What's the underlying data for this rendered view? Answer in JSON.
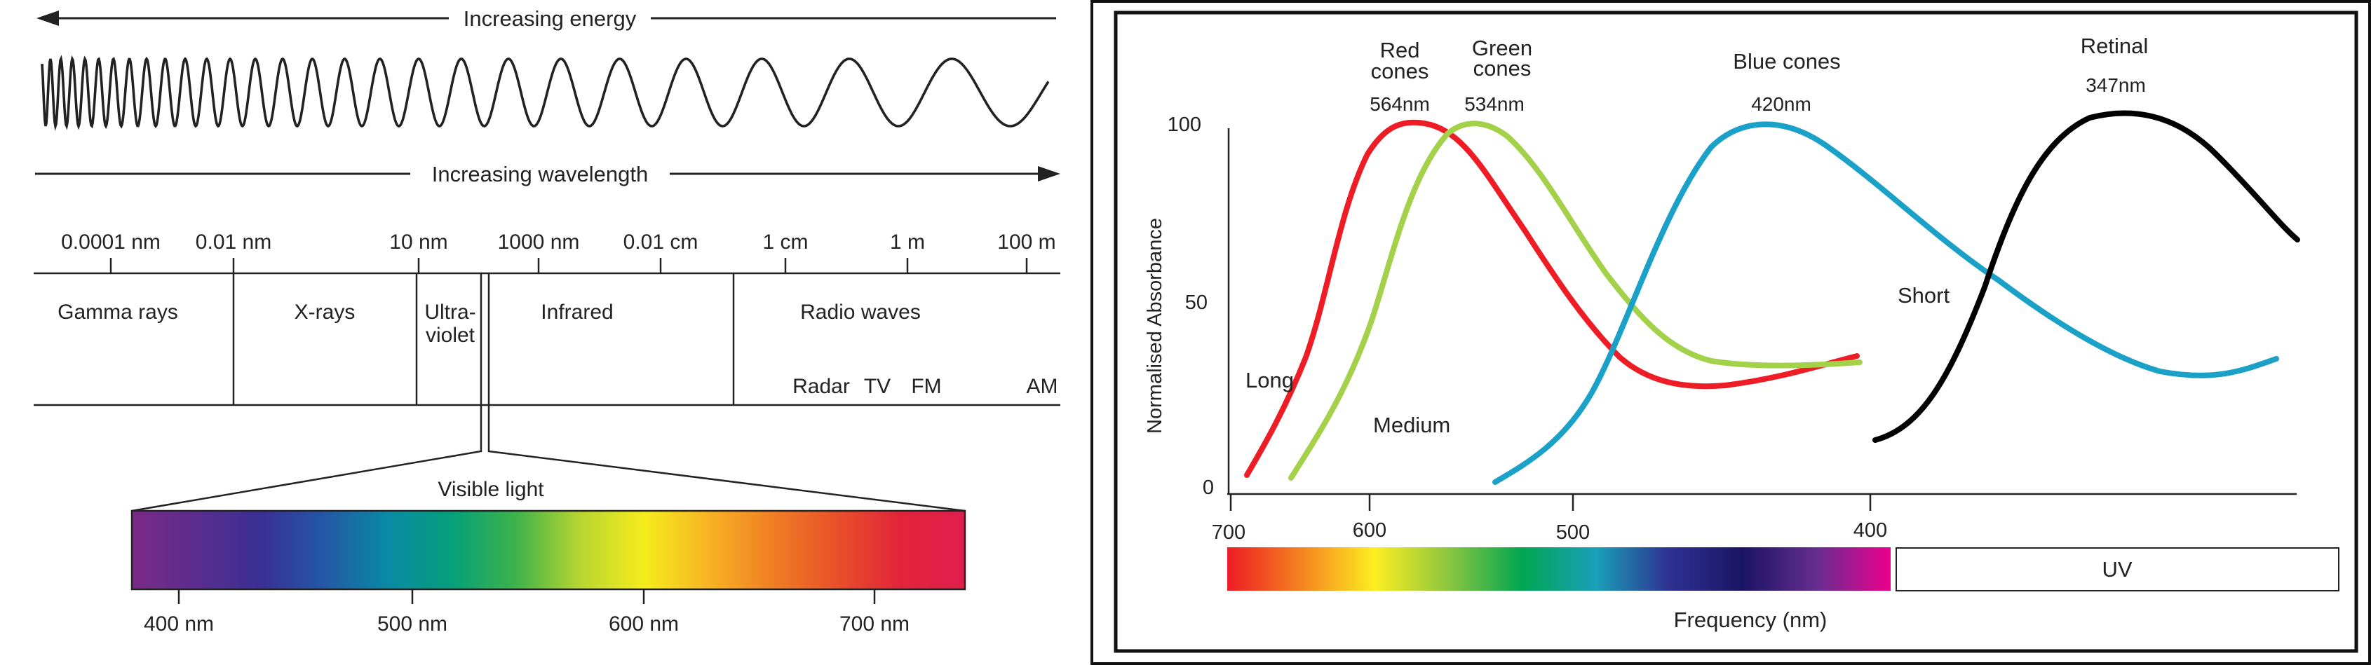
{
  "spectrum": {
    "energy_label": "Increasing energy",
    "wavelength_label": "Increasing wavelength",
    "scale_ticks": [
      "0.0001 nm",
      "0.01 nm",
      "10 nm",
      "1000 nm",
      "0.01 cm",
      "1 cm",
      "1 m",
      "100 m"
    ],
    "regions": [
      "Gamma rays",
      "X-rays",
      "Ultra-",
      "violet",
      "Infrared",
      "Radio waves"
    ],
    "radio_bands": [
      "Radar",
      "TV",
      "FM",
      "AM"
    ],
    "visible_label": "Visible light",
    "visible_ticks": [
      "400 nm",
      "500 nm",
      "600 nm",
      "700 nm"
    ],
    "visible_gradient": [
      "#7b2a86",
      "#5b2d8f",
      "#3a2f93",
      "#2358a6",
      "#0a8aa4",
      "#05a07a",
      "#3fb24a",
      "#b8d531",
      "#f5ec1c",
      "#f7b323",
      "#ef7e24",
      "#e8502a",
      "#e2243a",
      "#df1e4d"
    ]
  },
  "absorbance": {
    "y_axis_label": "Normalised Absorbance",
    "y_ticks": [
      "100",
      "50",
      "0"
    ],
    "x_ticks": [
      "700",
      "600",
      "500",
      "400"
    ],
    "x_axis_label": "Frequency (nm)",
    "uv_label": "UV",
    "peaks": {
      "red_title": [
        "Red",
        "cones"
      ],
      "red_nm": "564nm",
      "green_title": [
        "Green",
        "cones"
      ],
      "green_nm": "534nm",
      "blue_title": "Blue cones",
      "blue_nm": "420nm",
      "retinal_title": "Retinal",
      "retinal_nm": "347nm"
    },
    "curve_labels": {
      "long": "Long",
      "medium": "Medium",
      "short": "Short"
    },
    "colors": {
      "red": "#ee1c25",
      "green": "#a3d14a",
      "blue": "#1ba1c8",
      "retinal": "#000000"
    },
    "frequency_gradient": [
      "#ee1c25",
      "#f5821f",
      "#fcee21",
      "#8cc63f",
      "#00a651",
      "#1aa0b8",
      "#2e3192",
      "#1b1464",
      "#662d91",
      "#ec008c"
    ]
  }
}
